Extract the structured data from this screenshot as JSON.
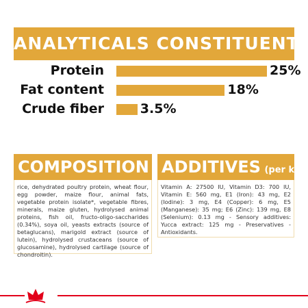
{
  "header": {
    "title": "ANALYTICALS CONSTITUENTS"
  },
  "chart_data": {
    "type": "bar",
    "categories": [
      "Protein",
      "Fat content",
      "Crude fiber"
    ],
    "values": [
      25,
      18,
      3.5
    ],
    "value_labels": [
      "25%",
      "18%",
      "3.5%"
    ],
    "color": "#e2a73a"
  },
  "composition": {
    "title": "COMPOSITION",
    "text": "rice, dehydrated poultry protein, wheat flour, egg powder, maize flour, animal fats, vegetable protein isolate*, vegetable fibres, minerals, maize gluten, hydrolysed animal proteins, fish oil, fructo-oligo-saccharides (0.34%), soya oil, yeasts extracts (source of betaglucans), marigold extract (source of lutein), hydrolysed crustaceans (source of glucosamine), hydrolysed cartilage (source of chondroitin)."
  },
  "additives": {
    "title": "ADDITIVES",
    "subtitle": "(per kg)",
    "text": "Vitamin A: 27500 IU, Vitamin D3: 700 IU, Vitamin E: 560 mg, E1 (Iron): 43 mg, E2 (Iodine): 3 mg, E4 (Copper): 6 mg, E5 (Manganese): 35 mg; E6 (Zinc): 139 mg, E8 (Selenium): 0.13 mg - Sensory additives: Yucca extract: 125 mg - Preservatives - Antioxidants."
  }
}
